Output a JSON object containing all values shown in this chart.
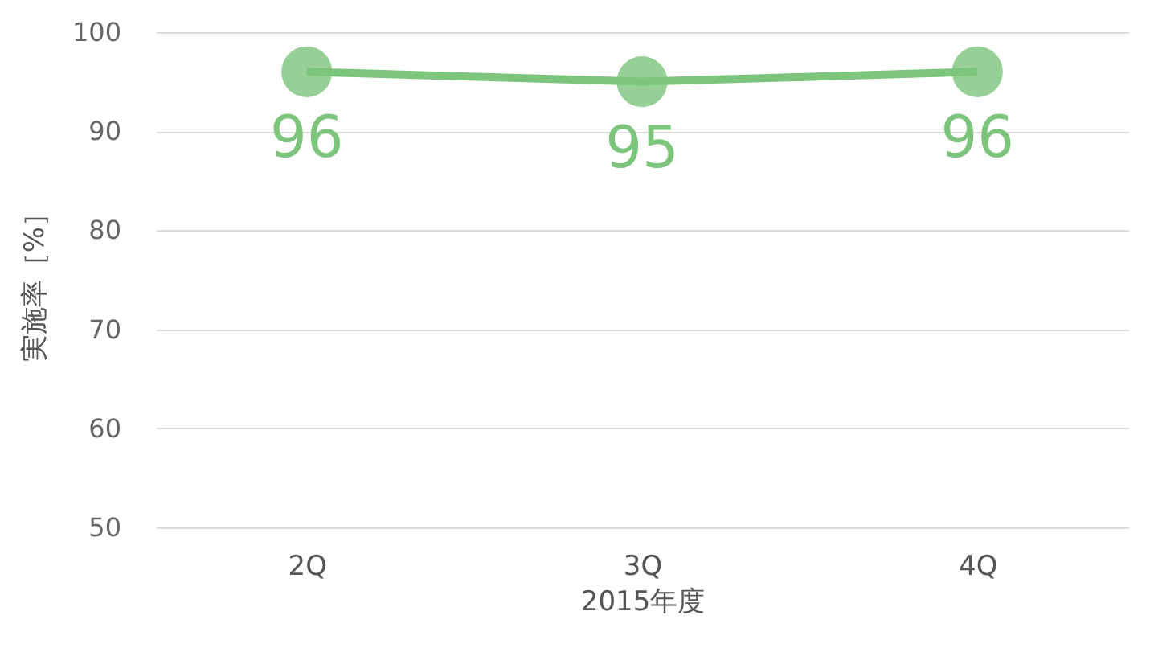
{
  "chart_data": {
    "type": "line",
    "xlabel": "2015年度",
    "ylabel": "実施率［%］",
    "categories": [
      "2Q",
      "3Q",
      "4Q"
    ],
    "series": [
      {
        "color": "#7dc47d",
        "values": [
          96,
          95,
          96
        ]
      }
    ],
    "ylim": [
      50,
      100
    ],
    "yticks": [
      50,
      60,
      70,
      80,
      90,
      100
    ],
    "grid": "y",
    "marker": "circle",
    "data_labels": true
  }
}
